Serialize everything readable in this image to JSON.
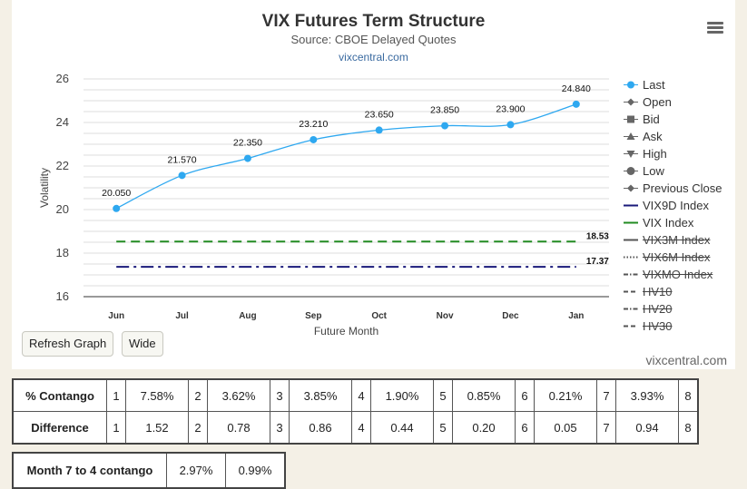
{
  "chart": {
    "title": "VIX Futures Term Structure",
    "subtitle": "Source: CBOE Delayed Quotes",
    "link": "vixcentral.com",
    "watermark": "vixcentral.com"
  },
  "chart_data": {
    "type": "line",
    "title": "VIX Futures Term Structure",
    "subtitle": "Source: CBOE Delayed Quotes",
    "xlabel": "Future Month",
    "ylabel": "Volatility",
    "categories": [
      "Jun",
      "Jul",
      "Aug",
      "Sep",
      "Oct",
      "Nov",
      "Dec",
      "Jan"
    ],
    "ylim": [
      16,
      26
    ],
    "yticks": [
      16,
      18,
      20,
      22,
      24,
      26
    ],
    "grid": true,
    "legend_position": "right",
    "series": [
      {
        "name": "Last",
        "values": [
          20.05,
          21.57,
          22.35,
          23.21,
          23.65,
          23.85,
          23.9,
          24.84
        ],
        "labels": [
          "20.050",
          "21.570",
          "22.350",
          "23.210",
          "23.650",
          "23.850",
          "23.900",
          "24.840"
        ],
        "color": "#2ea8f0"
      },
      {
        "name": "VIX Index",
        "constant": 18.53,
        "label": "18.53",
        "color": "#228b22"
      },
      {
        "name": "VIX9D Index",
        "constant": 17.37,
        "label": "17.37",
        "color": "#1a1a7a"
      }
    ]
  },
  "legend": [
    {
      "label": "Last",
      "symbol": "circle",
      "color": "#2ea8f0",
      "visible": true
    },
    {
      "label": "Open",
      "symbol": "diamond",
      "color": "#666666",
      "visible": true
    },
    {
      "label": "Bid",
      "symbol": "square",
      "color": "#666666",
      "visible": true
    },
    {
      "label": "Ask",
      "symbol": "triangle",
      "color": "#666666",
      "visible": true
    },
    {
      "label": "High",
      "symbol": "triangle-down",
      "color": "#666666",
      "visible": true
    },
    {
      "label": "Low",
      "symbol": "circle",
      "color": "#666666",
      "visible": true
    },
    {
      "label": "Previous Close",
      "symbol": "diamond",
      "color": "#666666",
      "visible": true
    },
    {
      "label": "VIX9D Index",
      "symbol": "line",
      "color": "#1a1a7a",
      "visible": true
    },
    {
      "label": "VIX Index",
      "symbol": "line",
      "color": "#228b22",
      "visible": true
    },
    {
      "label": "VIX3M Index",
      "symbol": "line",
      "color": "#555555",
      "visible": false
    },
    {
      "label": "VIX6M Index",
      "symbol": "dotted",
      "color": "#555555",
      "visible": false
    },
    {
      "label": "VIXMO Index",
      "symbol": "dashdot",
      "color": "#555555",
      "visible": false
    },
    {
      "label": "HV10",
      "symbol": "dashed",
      "color": "#555555",
      "visible": false
    },
    {
      "label": "HV20",
      "symbol": "dashdot",
      "color": "#555555",
      "visible": false
    },
    {
      "label": "HV30",
      "symbol": "dashed",
      "color": "#555555",
      "visible": false
    }
  ],
  "buttons": {
    "refresh": "Refresh Graph",
    "wide": "Wide"
  },
  "contango_table": {
    "rows": [
      {
        "label": "% Contango",
        "cells": [
          [
            "1",
            "7.58%"
          ],
          [
            "2",
            "3.62%"
          ],
          [
            "3",
            "3.85%"
          ],
          [
            "4",
            "1.90%"
          ],
          [
            "5",
            "0.85%"
          ],
          [
            "6",
            "0.21%"
          ],
          [
            "7",
            "3.93%"
          ]
        ],
        "last": "8"
      },
      {
        "label": "Difference",
        "cells": [
          [
            "1",
            "1.52"
          ],
          [
            "2",
            "0.78"
          ],
          [
            "3",
            "0.86"
          ],
          [
            "4",
            "0.44"
          ],
          [
            "5",
            "0.20"
          ],
          [
            "6",
            "0.05"
          ],
          [
            "7",
            "0.94"
          ]
        ],
        "last": "8"
      }
    ]
  },
  "month74": {
    "label": "Month 7 to 4 contango",
    "value1": "2.97%",
    "value2": "0.99%"
  }
}
